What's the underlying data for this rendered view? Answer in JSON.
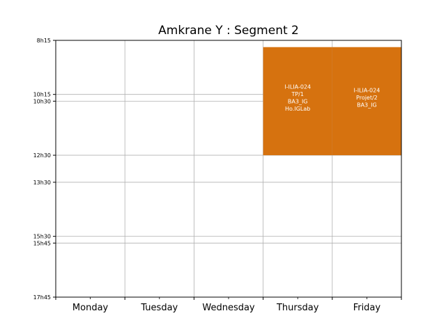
{
  "chart_data": {
    "type": "timetable",
    "title": "Amkrane Y : Segment 2",
    "days": [
      "Monday",
      "Tuesday",
      "Wednesday",
      "Thursday",
      "Friday"
    ],
    "y_ticks": [
      {
        "label": "8h15",
        "hours": 8.25
      },
      {
        "label": "10h15",
        "hours": 10.25
      },
      {
        "label": "10h30",
        "hours": 10.5
      },
      {
        "label": "12h30",
        "hours": 12.5
      },
      {
        "label": "13h30",
        "hours": 13.5
      },
      {
        "label": "15h30",
        "hours": 15.5
      },
      {
        "label": "15h45",
        "hours": 15.75
      },
      {
        "label": "17h45",
        "hours": 17.75
      }
    ],
    "ylim": [
      8.25,
      17.75
    ],
    "grid": true,
    "events": [
      {
        "day": "Thursday",
        "start": 8.5,
        "end": 12.5,
        "color": "#d6720f",
        "lines": [
          "I-ILIA-024",
          "TP/1",
          "BA3_IG",
          "Ho.IGLab"
        ]
      },
      {
        "day": "Friday",
        "start": 8.5,
        "end": 12.5,
        "color": "#d6720f",
        "lines": [
          "I-ILIA-024",
          "Projet/2",
          "BA3_IG"
        ]
      }
    ]
  }
}
